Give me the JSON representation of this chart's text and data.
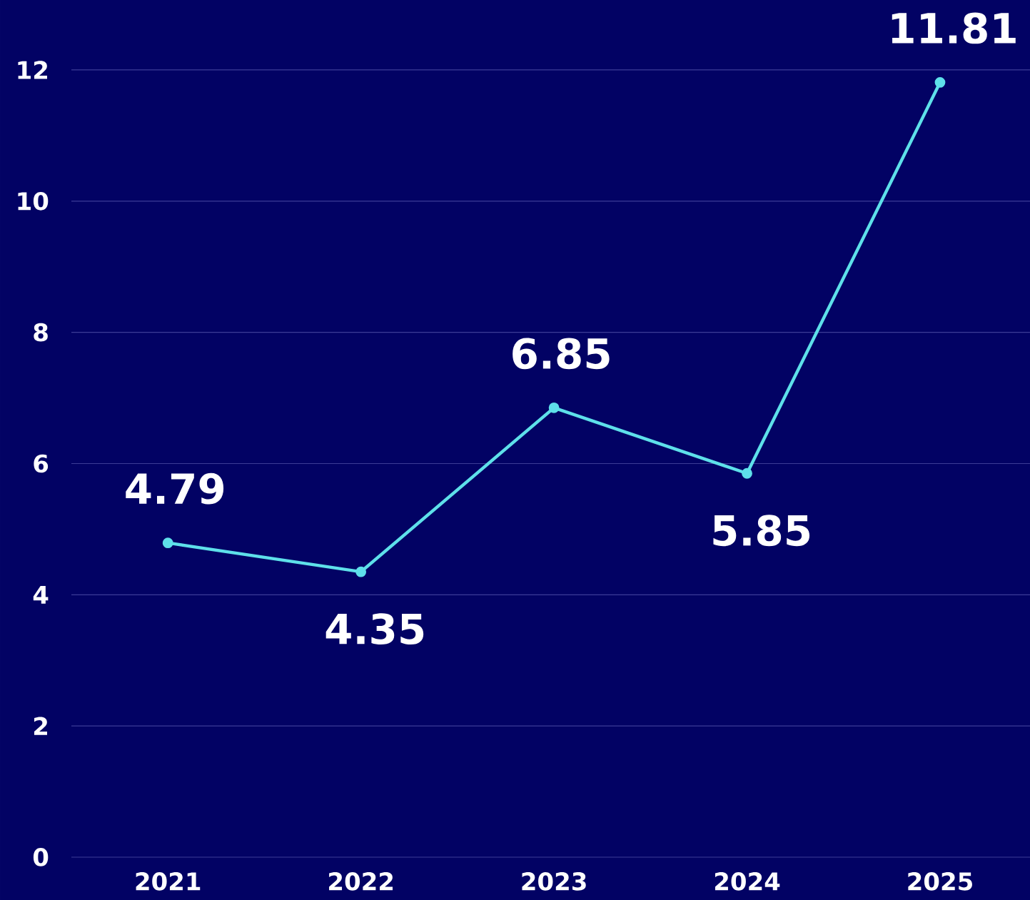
{
  "chart_data": {
    "type": "line",
    "categories": [
      "2021",
      "2022",
      "2023",
      "2024",
      "2025"
    ],
    "values": [
      4.79,
      4.35,
      6.85,
      5.85,
      11.81
    ],
    "color": "#5ee0ea",
    "ylim": [
      0,
      12
    ],
    "yticks": [
      0,
      2,
      4,
      6,
      8,
      10,
      12
    ],
    "grid": "y",
    "data_labels": true,
    "marker": "circle",
    "line_style": "solid"
  }
}
